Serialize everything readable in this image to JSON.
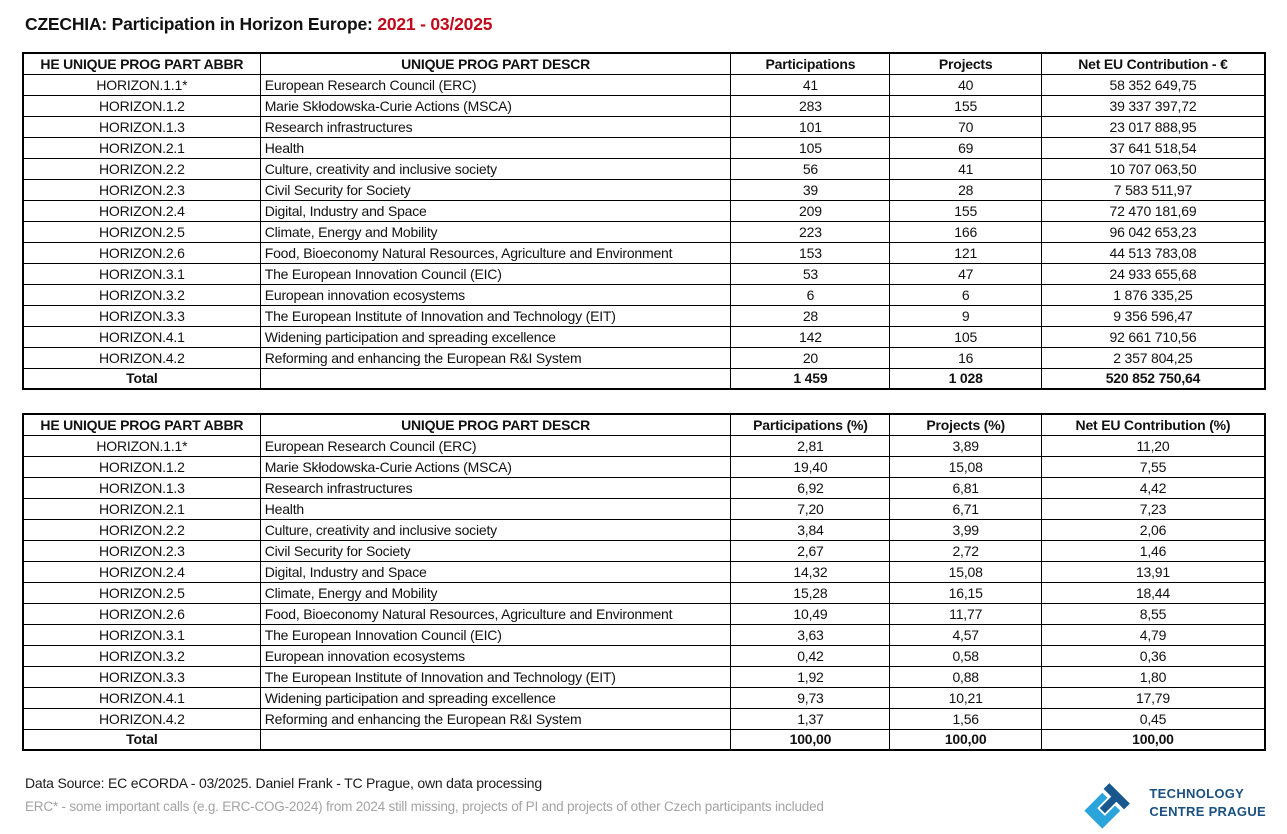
{
  "title": {
    "main": "CZECHIA: Participation in Horizon Europe: ",
    "period": "2021 - 03/2025"
  },
  "colors": {
    "accent_red": "#C10A1C",
    "logo_light_blue": "#2BA4DC",
    "logo_dark_blue": "#17578E",
    "logo_text_blue": "#1B5180",
    "note_gray": "#A3A3A3"
  },
  "table1": {
    "headers": [
      "HE UNIQUE PROG PART ABBR",
      "UNIQUE PROG PART DESCR",
      "Participations",
      "Projects",
      "Net EU Contribution - €"
    ],
    "rows": [
      [
        "HORIZON.1.1*",
        "European Research Council (ERC)",
        "41",
        "40",
        "58 352 649,75"
      ],
      [
        "HORIZON.1.2",
        "Marie Skłodowska-Curie Actions (MSCA)",
        "283",
        "155",
        "39 337 397,72"
      ],
      [
        "HORIZON.1.3",
        "Research infrastructures",
        "101",
        "70",
        "23 017 888,95"
      ],
      [
        "HORIZON.2.1",
        "Health",
        "105",
        "69",
        "37 641 518,54"
      ],
      [
        "HORIZON.2.2",
        "Culture, creativity and inclusive society",
        "56",
        "41",
        "10 707 063,50"
      ],
      [
        "HORIZON.2.3",
        "Civil Security for Society",
        "39",
        "28",
        "7 583 511,97"
      ],
      [
        "HORIZON.2.4",
        "Digital, Industry and Space",
        "209",
        "155",
        "72 470 181,69"
      ],
      [
        "HORIZON.2.5",
        "Climate, Energy and Mobility",
        "223",
        "166",
        "96 042 653,23"
      ],
      [
        "HORIZON.2.6",
        "Food, Bioeconomy Natural Resources, Agriculture and Environment",
        "153",
        "121",
        "44 513 783,08"
      ],
      [
        "HORIZON.3.1",
        "The European Innovation Council (EIC)",
        "53",
        "47",
        "24 933 655,68"
      ],
      [
        "HORIZON.3.2",
        "European innovation ecosystems",
        "6",
        "6",
        "1 876 335,25"
      ],
      [
        "HORIZON.3.3",
        "The European Institute of Innovation and Technology (EIT)",
        "28",
        "9",
        "9 356 596,47"
      ],
      [
        "HORIZON.4.1",
        "Widening participation and spreading excellence",
        "142",
        "105",
        "92 661 710,56"
      ],
      [
        "HORIZON.4.2",
        "Reforming and enhancing the European R&I System",
        "20",
        "16",
        "2 357 804,25"
      ]
    ],
    "total": [
      "Total",
      "",
      "1 459",
      "1 028",
      "520 852 750,64"
    ]
  },
  "table2": {
    "headers": [
      "HE UNIQUE PROG PART ABBR",
      "UNIQUE PROG PART DESCR",
      "Participations (%)",
      "Projects (%)",
      "Net EU Contribution (%)"
    ],
    "rows": [
      [
        "HORIZON.1.1*",
        "European Research Council (ERC)",
        "2,81",
        "3,89",
        "11,20"
      ],
      [
        "HORIZON.1.2",
        "Marie Skłodowska-Curie Actions (MSCA)",
        "19,40",
        "15,08",
        "7,55"
      ],
      [
        "HORIZON.1.3",
        "Research infrastructures",
        "6,92",
        "6,81",
        "4,42"
      ],
      [
        "HORIZON.2.1",
        "Health",
        "7,20",
        "6,71",
        "7,23"
      ],
      [
        "HORIZON.2.2",
        "Culture, creativity and inclusive society",
        "3,84",
        "3,99",
        "2,06"
      ],
      [
        "HORIZON.2.3",
        "Civil Security for Society",
        "2,67",
        "2,72",
        "1,46"
      ],
      [
        "HORIZON.2.4",
        "Digital, Industry and Space",
        "14,32",
        "15,08",
        "13,91"
      ],
      [
        "HORIZON.2.5",
        "Climate, Energy and Mobility",
        "15,28",
        "16,15",
        "18,44"
      ],
      [
        "HORIZON.2.6",
        "Food, Bioeconomy Natural Resources, Agriculture and Environment",
        "10,49",
        "11,77",
        "8,55"
      ],
      [
        "HORIZON.3.1",
        "The European Innovation Council (EIC)",
        "3,63",
        "4,57",
        "4,79"
      ],
      [
        "HORIZON.3.2",
        "European innovation ecosystems",
        "0,42",
        "0,58",
        "0,36"
      ],
      [
        "HORIZON.3.3",
        "The European Institute of Innovation and Technology (EIT)",
        "1,92",
        "0,88",
        "1,80"
      ],
      [
        "HORIZON.4.1",
        "Widening participation and spreading excellence",
        "9,73",
        "10,21",
        "17,79"
      ],
      [
        "HORIZON.4.2",
        "Reforming and enhancing the European R&I System",
        "1,37",
        "1,56",
        "0,45"
      ]
    ],
    "total": [
      "Total",
      "",
      "100,00",
      "100,00",
      "100,00"
    ]
  },
  "footer": {
    "source": "Data Source: EC eCORDA - 03/2025. Daniel Frank - TC Prague, own data processing",
    "note": "ERC* - some important calls (e.g. ERC-COG-2024) from 2024 still missing, projects of PI and projects of other Czech participants included",
    "logo_line1": "TECHNOLOGY",
    "logo_line2": "CENTRE PRAGUE"
  }
}
